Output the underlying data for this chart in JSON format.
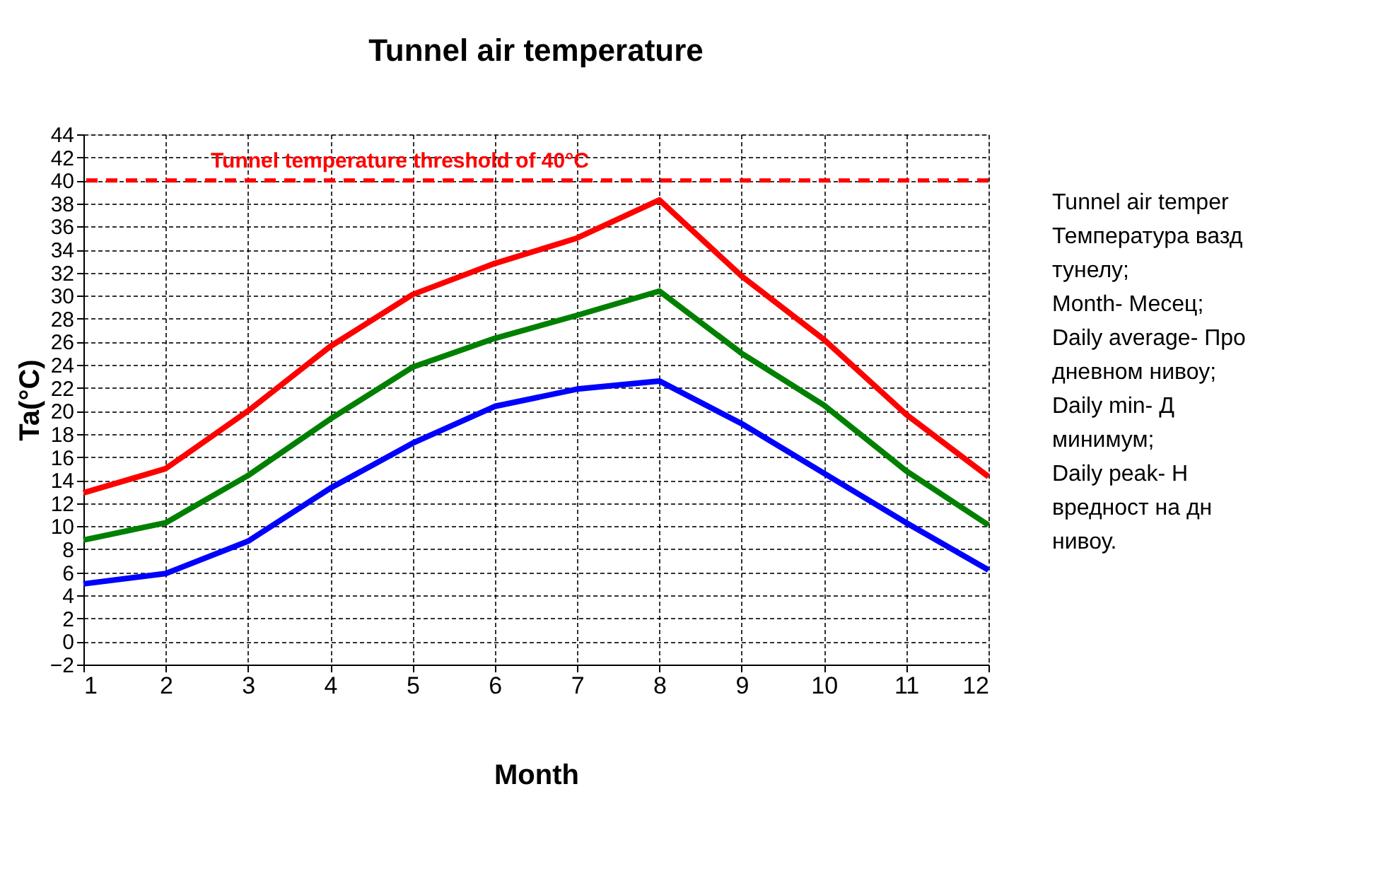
{
  "chart_data": {
    "type": "line",
    "title": "Tunnel air temperature",
    "xlabel": "Month",
    "ylabel": "Ta(°C)",
    "x": [
      1,
      2,
      3,
      4,
      5,
      6,
      7,
      8,
      9,
      10,
      11,
      12
    ],
    "series": [
      {
        "color": "#ff0000",
        "values": [
          12.9,
          15.0,
          20.0,
          25.6,
          30.1,
          32.8,
          35.0,
          38.3,
          31.7,
          26.2,
          19.7,
          14.3
        ]
      },
      {
        "color": "#008000",
        "values": [
          8.8,
          10.3,
          14.4,
          19.3,
          23.8,
          26.3,
          28.3,
          30.4,
          25.0,
          20.5,
          14.8,
          10.1
        ]
      },
      {
        "color": "#0000ff",
        "values": [
          5.0,
          5.9,
          8.7,
          13.3,
          17.2,
          20.4,
          21.9,
          22.6,
          18.9,
          14.6,
          10.3,
          6.2
        ]
      }
    ],
    "xlim": [
      1,
      12
    ],
    "xticks": [
      1,
      2,
      3,
      4,
      5,
      6,
      7,
      8,
      9,
      10,
      11,
      12
    ],
    "ylim": [
      -2,
      44
    ],
    "yticks": [
      -2,
      0,
      2,
      4,
      6,
      8,
      10,
      12,
      14,
      16,
      18,
      20,
      22,
      24,
      26,
      28,
      30,
      32,
      34,
      36,
      38,
      40,
      42,
      44
    ],
    "grid": true,
    "marker": "none",
    "line_style": "solid",
    "ref_lines": [
      {
        "axis": "y",
        "value": 40,
        "label": "Tunnel temperature threshold of 40°C",
        "color": "#ff0000",
        "line_style": "dashed"
      }
    ],
    "annotations": [
      "Tunnel air temper",
      "Температура вазд",
      "тунелу;",
      "Month- Месец;",
      "Daily average- Про",
      "дневном нивоу;",
      "Daily min- Д",
      "минимум;",
      "Daily peak- Н",
      "вредност на дн",
      "нивоу."
    ]
  }
}
